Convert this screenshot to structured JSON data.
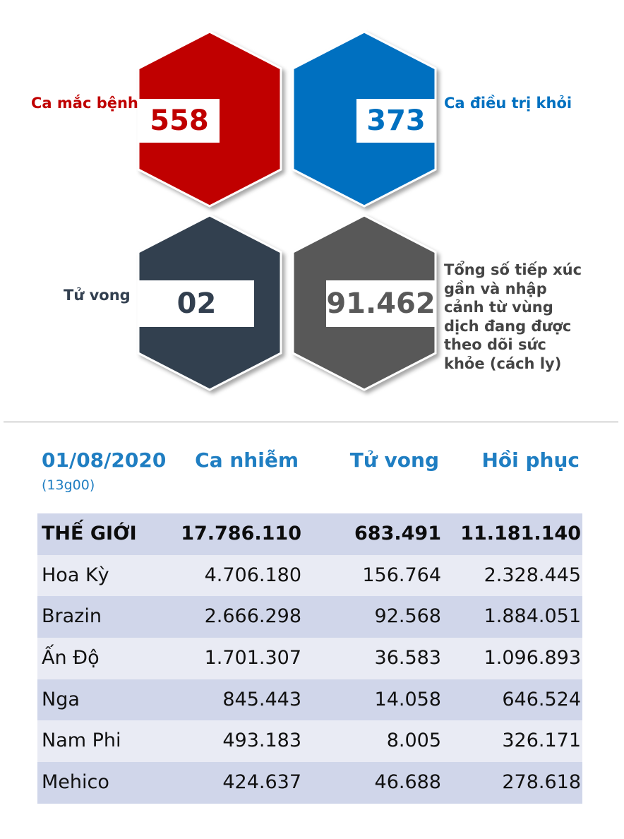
{
  "stats": {
    "cases": {
      "label": "Ca mắc bệnh",
      "value": "558",
      "color": "#c00000"
    },
    "recovered": {
      "label": "Ca điều trị khỏi",
      "value": "373",
      "color": "#0070c0"
    },
    "deaths": {
      "label": "Tử vong",
      "value": "02",
      "color": "#323f4f"
    },
    "monitored": {
      "label_lines": [
        "Tổng số tiếp xúc",
        "gần và nhập",
        "cảnh từ vùng",
        "dịch đang được",
        "theo dõi sức",
        "khỏe (cách ly)"
      ],
      "value": "91.462",
      "color": "#595959"
    }
  },
  "table": {
    "date": "01/08/2020",
    "time": "(13g00)",
    "headers": {
      "infected": "Ca nhiễm",
      "deaths": "Tử vong",
      "recovered": "Hồi phục"
    },
    "rows": [
      {
        "name": "THẾ GIỚI",
        "infected": "17.786.110",
        "deaths": "683.491",
        "recovered": "11.181.140"
      },
      {
        "name": "Hoa Kỳ",
        "infected": "4.706.180",
        "deaths": "156.764",
        "recovered": "2.328.445"
      },
      {
        "name": "Brazin",
        "infected": "2.666.298",
        "deaths": "92.568",
        "recovered": "1.884.051"
      },
      {
        "name": "Ấn Độ",
        "infected": "1.701.307",
        "deaths": "36.583",
        "recovered": "1.096.893"
      },
      {
        "name": "Nga",
        "infected": "845.443",
        "deaths": "14.058",
        "recovered": "646.524"
      },
      {
        "name": "Nam Phi",
        "infected": "493.183",
        "deaths": "8.005",
        "recovered": "326.171"
      },
      {
        "name": "Mehico",
        "infected": "424.637",
        "deaths": "46.688",
        "recovered": "278.618"
      }
    ]
  }
}
